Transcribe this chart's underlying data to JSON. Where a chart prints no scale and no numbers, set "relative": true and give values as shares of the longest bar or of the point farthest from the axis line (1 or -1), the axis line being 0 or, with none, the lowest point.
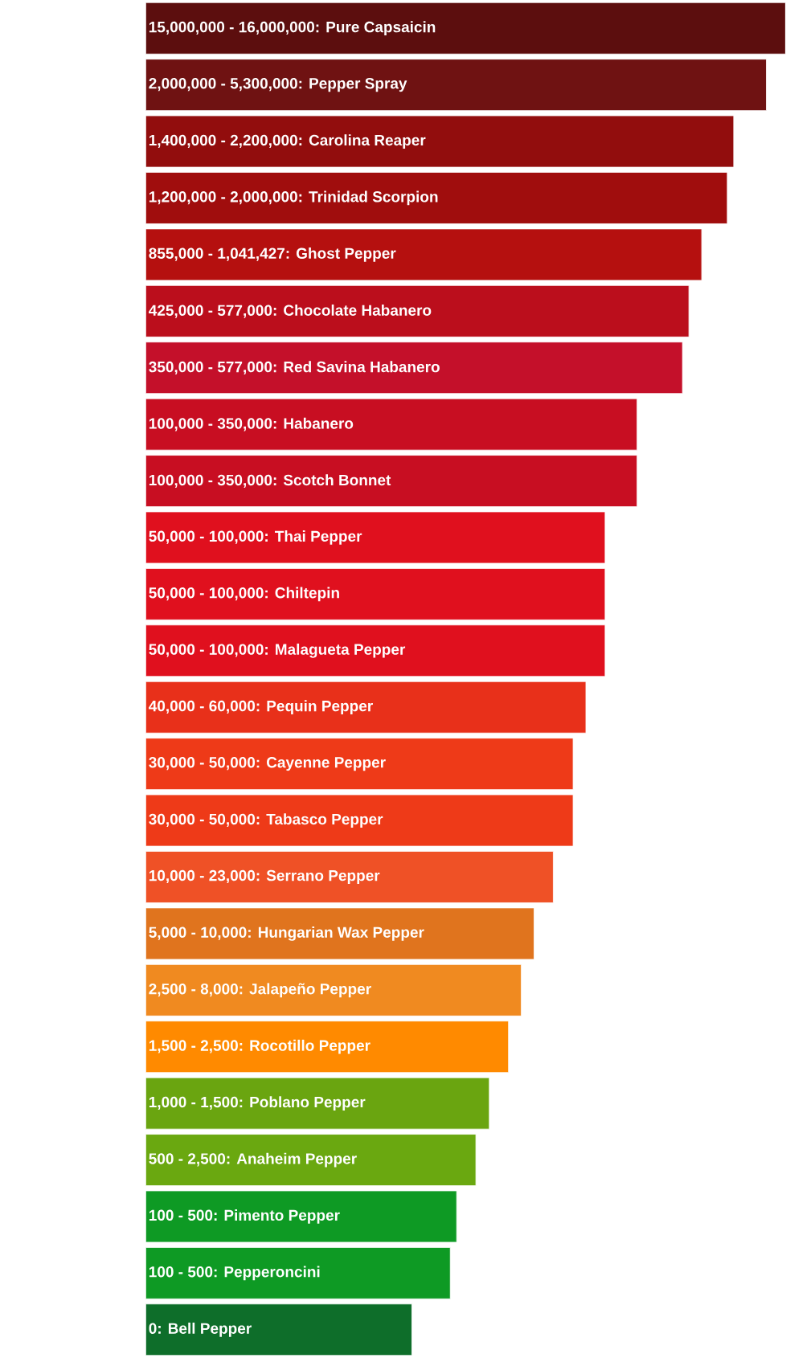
{
  "chart_data": {
    "type": "bar",
    "orientation": "horizontal",
    "relative": true,
    "categories": [
      "15,000,000 - 16,000,000: Pure Capsaicin",
      "2,000,000 - 5,300,000: Pepper Spray",
      "1,400,000 - 2,200,000: Carolina Reaper",
      "1,200,000 - 2,000,000: Trinidad Scorpion",
      "855,000 - 1,041,427: Ghost Pepper",
      "425,000 - 577,000: Chocolate Habanero",
      "350,000 - 577,000: Red Savina Habanero",
      "100,000 - 350,000: Habanero",
      "100,000 - 350,000: Scotch Bonnet",
      "50,000 - 100,000: Thai Pepper",
      "50,000 - 100,000: Chiltepin",
      "50,000 - 100,000: Malagueta Pepper",
      "40,000 - 60,000: Pequin Pepper",
      "30,000 - 50,000: Cayenne Pepper",
      "30,000 - 50,000: Tabasco Pepper",
      "10,000 - 23,000: Serrano Pepper",
      "5,000 - 10,000: Hungarian Wax Pepper",
      "2,500 - 8,000: Jalapeño Pepper",
      "1,500 - 2,500: Rocotillo Pepper",
      "1,000 - 1,500: Poblano Pepper",
      "500 - 2,500: Anaheim Pepper",
      "100 - 500: Pimento Pepper",
      "100 - 500: Pepperoncini",
      "0: Bell Pepper"
    ],
    "values": [
      1,
      0.97,
      0.919,
      0.909,
      0.869,
      0.849,
      0.839,
      0.768,
      0.768,
      0.718,
      0.718,
      0.718,
      0.688,
      0.668,
      0.668,
      0.637,
      0.607,
      0.587,
      0.567,
      0.537,
      0.516,
      0.486,
      0.476,
      0.416
    ],
    "colors": [
      "#5c0e0e",
      "#6f1212",
      "#920d0d",
      "#a00d0d",
      "#b5100f",
      "#bb0e1c",
      "#c4102a",
      "#c80e22",
      "#c80e22",
      "#e0101e",
      "#e0101e",
      "#e0101e",
      "#e8301a",
      "#ee3a18",
      "#ee3a18",
      "#ef5126",
      "#e0741e",
      "#f08a20",
      "#ff8a00",
      "#6aa510",
      "#6aa810",
      "#0e9a24",
      "#0e9a24",
      "#0e6e2a"
    ]
  }
}
